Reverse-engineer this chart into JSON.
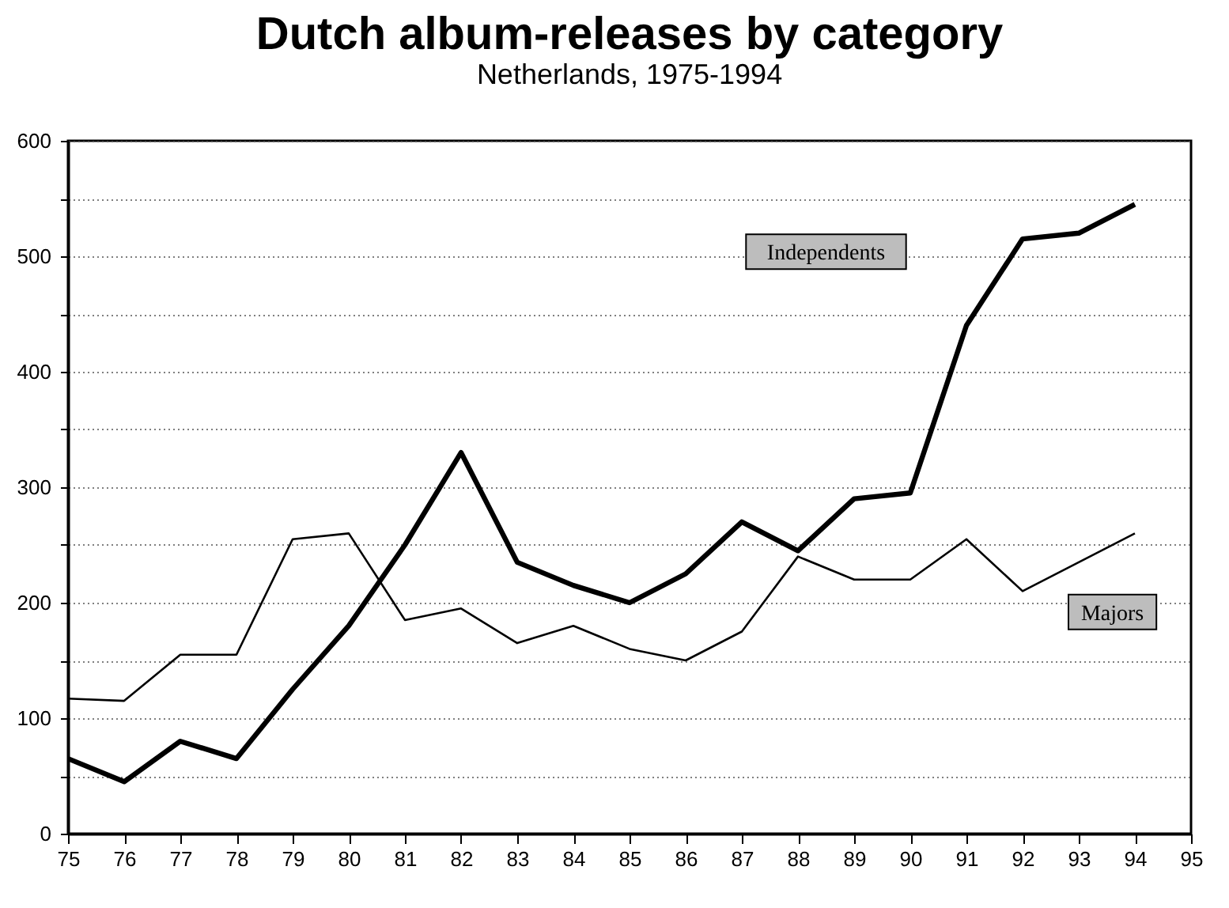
{
  "chart_data": {
    "type": "line",
    "title": "Dutch album-releases by category",
    "subtitle": "Netherlands, 1975-1994",
    "x": [
      75,
      76,
      77,
      78,
      79,
      80,
      81,
      82,
      83,
      84,
      85,
      86,
      87,
      88,
      89,
      90,
      91,
      92,
      93,
      94
    ],
    "series": [
      {
        "name": "Independents",
        "color": "#000000",
        "values": [
          65,
          45,
          80,
          65,
          125,
          180,
          250,
          330,
          235,
          215,
          200,
          225,
          270,
          245,
          290,
          295,
          440,
          515,
          520,
          545
        ]
      },
      {
        "name": "Majors",
        "color": "#000000",
        "values": [
          117,
          115,
          155,
          155,
          255,
          260,
          185,
          195,
          165,
          180,
          160,
          150,
          175,
          240,
          220,
          220,
          255,
          210,
          235,
          260
        ]
      }
    ],
    "xlim": [
      75,
      95
    ],
    "xticks": [
      75,
      76,
      77,
      78,
      79,
      80,
      81,
      82,
      83,
      84,
      85,
      86,
      87,
      88,
      89,
      90,
      91,
      92,
      93,
      94,
      95
    ],
    "ylim": [
      0,
      600
    ],
    "yticks": [
      0,
      {
        "value": 50,
        "label": null
      },
      100,
      {
        "value": 150,
        "label": null
      },
      200,
      {
        "value": 250,
        "label": null
      },
      300,
      {
        "value": 350,
        "label": null
      },
      400,
      {
        "value": 450,
        "label": null
      },
      500,
      {
        "value": 550,
        "label": null
      },
      600
    ],
    "grid": "y",
    "legend": false,
    "marker": "none",
    "line_style": "solid"
  }
}
